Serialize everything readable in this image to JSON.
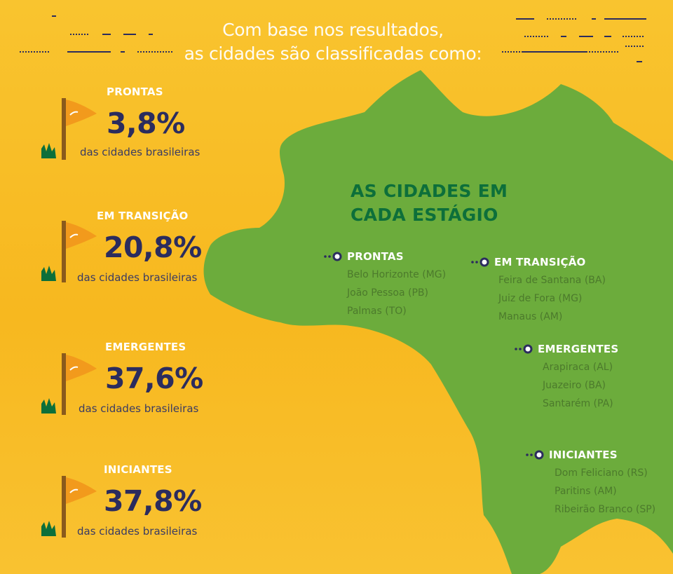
{
  "header": {
    "line1": "Com base nos resultados,",
    "line2": "as cidades são classificadas como:"
  },
  "colors": {
    "background": "#f7b81f",
    "map": "#6cac3c",
    "stat_number": "#2b2c5e",
    "flag": "#f29a1c",
    "title_green": "#0d6f3a"
  },
  "stats": [
    {
      "label": "PRONTAS",
      "pct": "3,8%",
      "sub": "das cidades brasileiras"
    },
    {
      "label": "EM TRANSIÇÃO",
      "pct": "20,8%",
      "sub": "das cidades brasileiras"
    },
    {
      "label": "EMERGENTES",
      "pct": "37,6%",
      "sub": "das cidades brasileiras"
    },
    {
      "label": "INICIANTES",
      "pct": "37,8%",
      "sub": "das cidades brasileiras"
    }
  ],
  "map": {
    "title_line1": "AS CIDADES EM",
    "title_line2": "CADA ESTÁGIO",
    "groups": [
      {
        "label": "PRONTAS",
        "cities": [
          "Belo Horizonte (MG)",
          "João Pessoa (PB)",
          "Palmas (TO)"
        ]
      },
      {
        "label": "EM TRANSIÇÃO",
        "cities": [
          "Feira de Santana (BA)",
          "Juiz de Fora (MG)",
          "Manaus (AM)"
        ]
      },
      {
        "label": "EMERGENTES",
        "cities": [
          "Arapiraca (AL)",
          "Juazeiro (BA)",
          "Santarém (PA)"
        ]
      },
      {
        "label": "INICIANTES",
        "cities": [
          "Dom Feliciano (RS)",
          "Paritins (AM)",
          "Ribeirão Branco (SP)"
        ]
      }
    ]
  }
}
